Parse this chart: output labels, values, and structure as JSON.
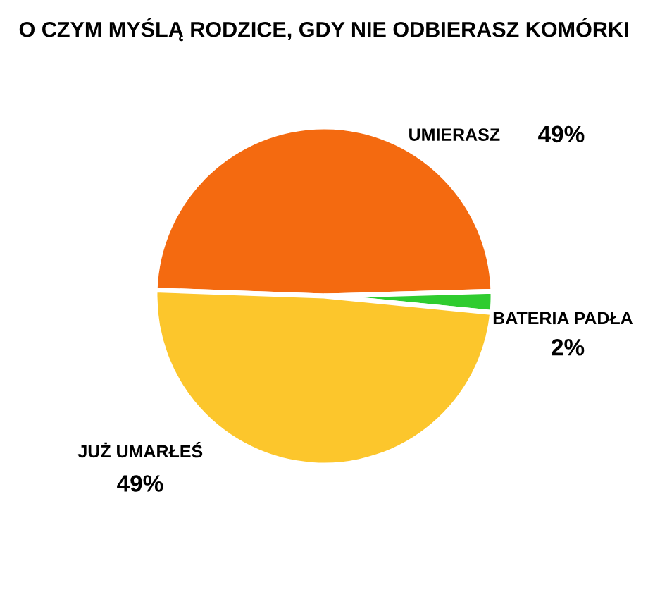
{
  "chart_data": {
    "type": "pie",
    "title": "O CZYM MYŚLĄ RODZICE, GDY NIE ODBIERASZ KOMÓRKI",
    "categories": [
      "UMIERASZ",
      "BATERIA PADŁA",
      "JUŻ UMARŁEŚ"
    ],
    "values": [
      49,
      2,
      49
    ],
    "value_labels": [
      "49%",
      "2%",
      "49%"
    ],
    "colors": [
      "#f46a10",
      "#2fcc2f",
      "#fcc62c"
    ]
  }
}
